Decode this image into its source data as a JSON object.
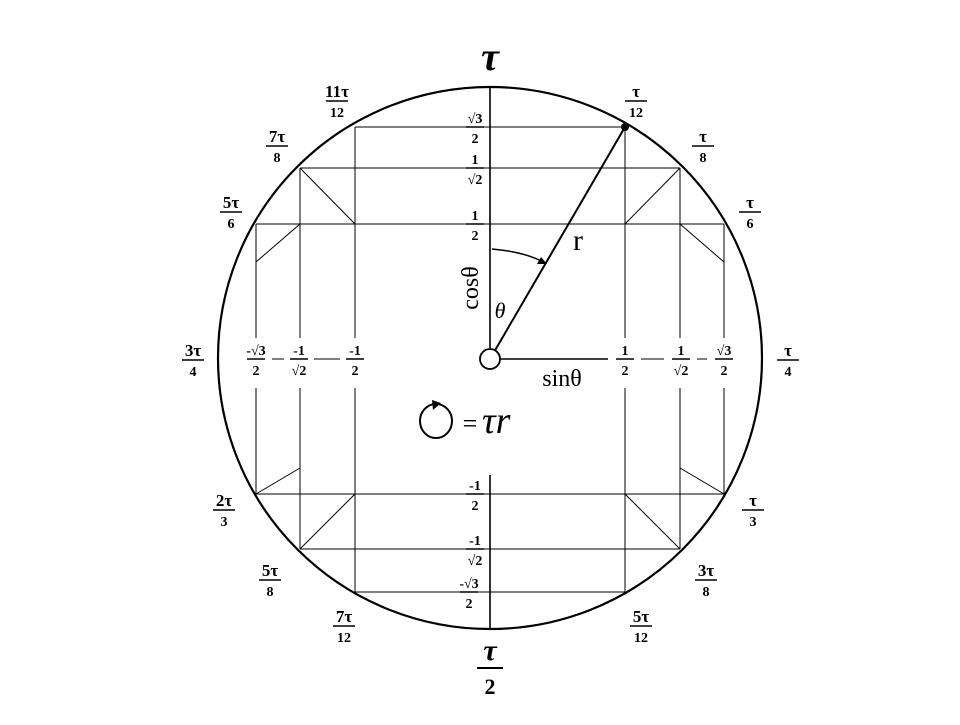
{
  "top_label": "τ",
  "bottom_label": {
    "num": "τ",
    "den": "2"
  },
  "radius_label": "r",
  "theta_label": "θ",
  "cos_label": "cosθ",
  "sin_label": "sinθ",
  "formula": {
    "eq": "=",
    "rhs": "τr"
  },
  "rim_fractions": [
    {
      "id": "tau-over-12",
      "num": "τ",
      "den": "12"
    },
    {
      "id": "tau-over-8",
      "num": "τ",
      "den": "8"
    },
    {
      "id": "tau-over-6",
      "num": "τ",
      "den": "6"
    },
    {
      "id": "tau-over-4",
      "num": "τ",
      "den": "4"
    },
    {
      "id": "tau-over-3",
      "num": "τ",
      "den": "3"
    },
    {
      "id": "3tau-over-8",
      "num": "3τ",
      "den": "8"
    },
    {
      "id": "5tau-over-12",
      "num": "5τ",
      "den": "12"
    },
    {
      "id": "7tau-over-12",
      "num": "7τ",
      "den": "12"
    },
    {
      "id": "5tau-over-8",
      "num": "5τ",
      "den": "8"
    },
    {
      "id": "2tau-over-3",
      "num": "2τ",
      "den": "3"
    },
    {
      "id": "3tau-over-4",
      "num": "3τ",
      "den": "4"
    },
    {
      "id": "5tau-over-6",
      "num": "5τ",
      "den": "6"
    },
    {
      "id": "7tau-over-8",
      "num": "7τ",
      "den": "8"
    },
    {
      "id": "11tau-over-12",
      "num": "11τ",
      "den": "12"
    }
  ],
  "axis_fractions": [
    {
      "id": "y-sqrt3-over-2",
      "num": "√3",
      "den": "2"
    },
    {
      "id": "y-1-over-sqrt2",
      "num": "1",
      "den": "√2"
    },
    {
      "id": "y-1-over-2",
      "num": "1",
      "den": "2"
    },
    {
      "id": "y-neg1-over-2",
      "num": "-1",
      "den": "2"
    },
    {
      "id": "y-neg1-over-sqrt2",
      "num": "-1",
      "den": "√2"
    },
    {
      "id": "y-negsqrt3-over-2",
      "num": "-√3",
      "den": "2"
    },
    {
      "id": "x-1-over-2",
      "num": "1",
      "den": "2"
    },
    {
      "id": "x-1-over-sqrt2",
      "num": "1",
      "den": "√2"
    },
    {
      "id": "x-sqrt3-over-2",
      "num": "√3",
      "den": "2"
    },
    {
      "id": "x-neg1-over-2",
      "num": "-1",
      "den": "2"
    },
    {
      "id": "x-neg1-over-sqrt2",
      "num": "-1",
      "den": "√2"
    },
    {
      "id": "x-negsqrt3-over-2",
      "num": "-√3",
      "den": "2"
    }
  ]
}
